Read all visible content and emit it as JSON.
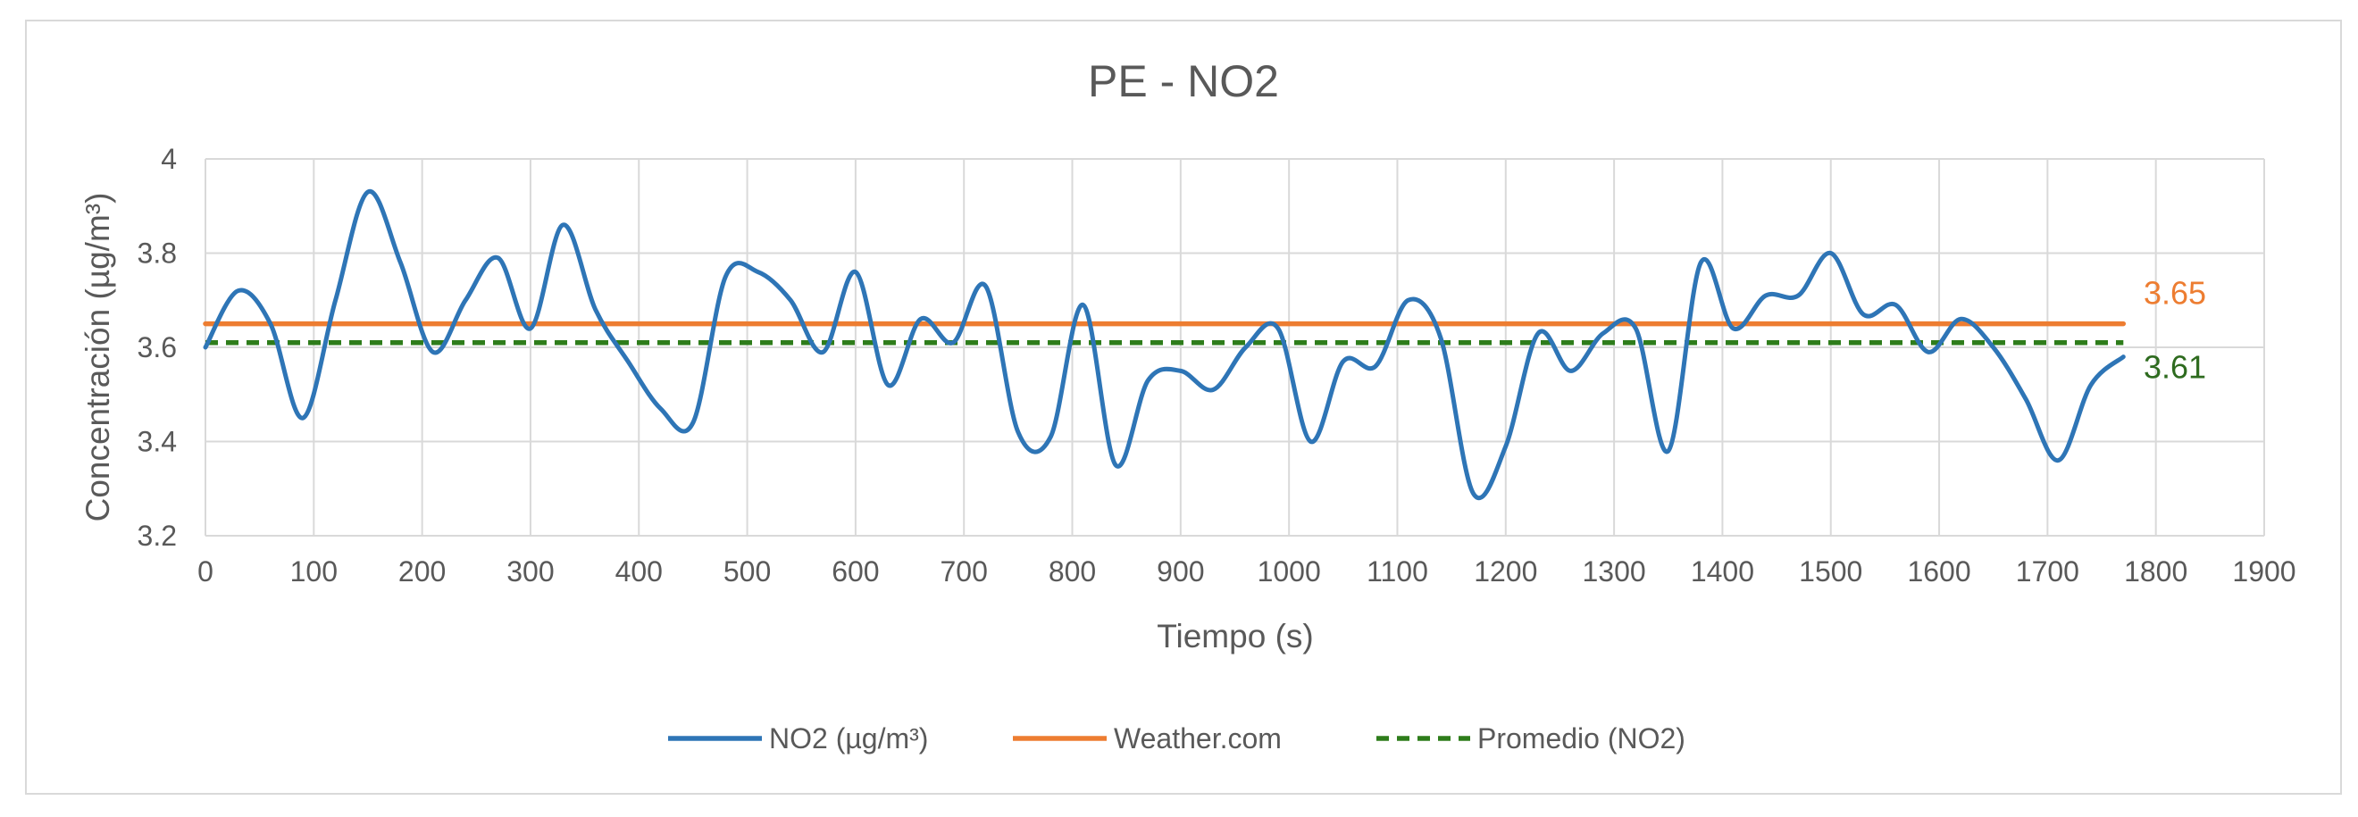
{
  "chart_data": {
    "type": "line",
    "title": "PE - NO2",
    "xlabel": "Tiempo (s)",
    "ylabel": "Concentración (µg/m³)",
    "xlim": [
      0,
      1900
    ],
    "ylim": [
      3.2,
      4.0
    ],
    "xticks": [
      0,
      100,
      200,
      300,
      400,
      500,
      600,
      700,
      800,
      900,
      1000,
      1100,
      1200,
      1300,
      1400,
      1500,
      1600,
      1700,
      1800,
      1900
    ],
    "yticks": [
      3.2,
      3.4,
      3.6,
      3.8,
      4.0
    ],
    "xtick_labels": [
      "0",
      "100",
      "200",
      "300",
      "400",
      "500",
      "600",
      "700",
      "800",
      "900",
      "1000",
      "1100",
      "1200",
      "1300",
      "1400",
      "1500",
      "1600",
      "1700",
      "1800",
      "1900"
    ],
    "ytick_labels": [
      "3.2",
      "3.4",
      "3.6",
      "3.8",
      "4"
    ],
    "grid": true,
    "legend_position": "bottom",
    "series": [
      {
        "name": "NO2 (µg/m³)",
        "color": "#2e75b6",
        "style": "solid",
        "x": [
          0,
          30,
          60,
          90,
          120,
          150,
          180,
          210,
          240,
          270,
          300,
          330,
          360,
          390,
          420,
          450,
          480,
          510,
          540,
          570,
          600,
          630,
          660,
          690,
          720,
          750,
          780,
          810,
          840,
          870,
          900,
          930,
          960,
          990,
          1020,
          1050,
          1080,
          1110,
          1140,
          1170,
          1200,
          1230,
          1260,
          1290,
          1320,
          1350,
          1380,
          1410,
          1440,
          1470,
          1500,
          1530,
          1560,
          1590,
          1620,
          1650,
          1680,
          1710,
          1740,
          1770
        ],
        "values": [
          3.6,
          3.72,
          3.65,
          3.45,
          3.7,
          3.93,
          3.78,
          3.59,
          3.7,
          3.79,
          3.64,
          3.86,
          3.68,
          3.57,
          3.47,
          3.44,
          3.75,
          3.76,
          3.7,
          3.59,
          3.76,
          3.52,
          3.66,
          3.61,
          3.73,
          3.42,
          3.41,
          3.69,
          3.35,
          3.53,
          3.55,
          3.51,
          3.6,
          3.64,
          3.4,
          3.57,
          3.56,
          3.7,
          3.62,
          3.29,
          3.39,
          3.63,
          3.55,
          3.63,
          3.64,
          3.38,
          3.78,
          3.64,
          3.71,
          3.71,
          3.8,
          3.67,
          3.69,
          3.59,
          3.66,
          3.6,
          3.49,
          3.36,
          3.52,
          3.58
        ]
      },
      {
        "name": "Weather.com",
        "color": "#ed7d31",
        "style": "solid",
        "x": [
          0,
          1770
        ],
        "values": [
          3.65,
          3.65
        ]
      },
      {
        "name": "Promedio (NO2)",
        "color": "#2e7d1b",
        "style": "dashed",
        "x": [
          0,
          1770
        ],
        "values": [
          3.61,
          3.61
        ]
      }
    ],
    "annotations": [
      {
        "text": "3.65",
        "color": "#ed7d31",
        "y": 3.65
      },
      {
        "text": "3.61",
        "color": "#2e6b1f",
        "y": 3.61
      }
    ]
  }
}
